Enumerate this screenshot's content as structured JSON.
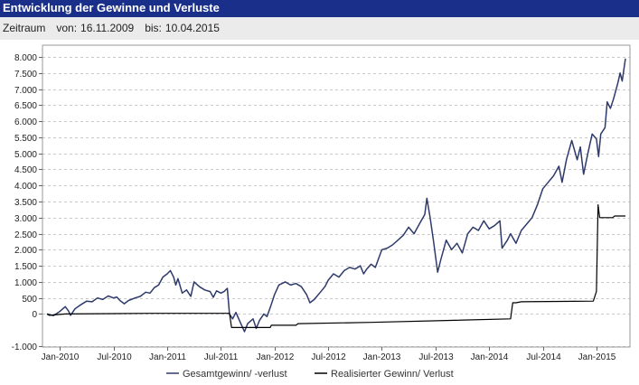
{
  "title": "Entwicklung der Gewinne und Verluste",
  "period": {
    "label": "Zeitraum",
    "from_label": "von:",
    "from": "16.11.2009",
    "to_label": "bis:",
    "to": "10.04.2015"
  },
  "colors": {
    "title_bg": "#1a2f8a",
    "period_bg": "#ebebeb",
    "series_total": "#2e3a6b",
    "series_realized": "#000000",
    "grid": "#c8c8c8"
  },
  "chart_data": {
    "type": "line",
    "title": "",
    "xlabel": "",
    "ylabel": "",
    "xlim": [
      2009.88,
      2015.27
    ],
    "ylim": [
      -1000,
      8300
    ],
    "y_ticks": [
      -1000,
      0,
      500,
      1000,
      1500,
      2000,
      2500,
      3000,
      3500,
      4000,
      4500,
      5000,
      5500,
      6000,
      6500,
      7000,
      7500,
      8000
    ],
    "y_tick_labels": [
      "-1.000",
      "0",
      "500",
      "1.000",
      "1.500",
      "2.000",
      "2.500",
      "3.000",
      "3.500",
      "4.000",
      "4.500",
      "5.000",
      "5.500",
      "6.000",
      "6.500",
      "7.000",
      "7.500",
      "8.000"
    ],
    "x_ticks": [
      {
        "label": "Jan-2010",
        "x": 2010.0
      },
      {
        "label": "Jul-2010",
        "x": 2010.5
      },
      {
        "label": "Jan-2011",
        "x": 2011.0
      },
      {
        "label": "Jul-2011",
        "x": 2011.5
      },
      {
        "label": "Jan-2012",
        "x": 2012.0
      },
      {
        "label": "Jul-2012",
        "x": 2012.5
      },
      {
        "label": "Jan-2013",
        "x": 2013.0
      },
      {
        "label": "Jul-2013",
        "x": 2013.5
      },
      {
        "label": "Jan-2014",
        "x": 2014.0
      },
      {
        "label": "Jul-2014",
        "x": 2014.5
      },
      {
        "label": "Jan-2015",
        "x": 2015.0
      }
    ],
    "grid": true,
    "legend_position": "bottom-center",
    "series": [
      {
        "name": "Gesamtgewinn/ -verlust",
        "color": "#2e3a6b",
        "points": [
          [
            2009.88,
            0
          ],
          [
            2009.94,
            -50
          ],
          [
            2010.0,
            80
          ],
          [
            2010.05,
            230
          ],
          [
            2010.08,
            100
          ],
          [
            2010.1,
            -40
          ],
          [
            2010.14,
            160
          ],
          [
            2010.2,
            300
          ],
          [
            2010.25,
            400
          ],
          [
            2010.3,
            380
          ],
          [
            2010.35,
            500
          ],
          [
            2010.4,
            450
          ],
          [
            2010.45,
            560
          ],
          [
            2010.5,
            500
          ],
          [
            2010.53,
            530
          ],
          [
            2010.56,
            420
          ],
          [
            2010.6,
            320
          ],
          [
            2010.64,
            420
          ],
          [
            2010.7,
            500
          ],
          [
            2010.75,
            550
          ],
          [
            2010.8,
            680
          ],
          [
            2010.84,
            650
          ],
          [
            2010.88,
            820
          ],
          [
            2010.92,
            900
          ],
          [
            2010.96,
            1150
          ],
          [
            2011.0,
            1250
          ],
          [
            2011.03,
            1350
          ],
          [
            2011.06,
            1150
          ],
          [
            2011.08,
            900
          ],
          [
            2011.1,
            1100
          ],
          [
            2011.14,
            650
          ],
          [
            2011.18,
            750
          ],
          [
            2011.22,
            550
          ],
          [
            2011.25,
            1000
          ],
          [
            2011.3,
            850
          ],
          [
            2011.35,
            750
          ],
          [
            2011.4,
            700
          ],
          [
            2011.43,
            520
          ],
          [
            2011.46,
            720
          ],
          [
            2011.5,
            650
          ],
          [
            2011.53,
            700
          ],
          [
            2011.56,
            800
          ],
          [
            2011.58,
            0
          ],
          [
            2011.61,
            -150
          ],
          [
            2011.64,
            50
          ],
          [
            2011.68,
            -250
          ],
          [
            2011.72,
            -550
          ],
          [
            2011.75,
            -300
          ],
          [
            2011.8,
            -150
          ],
          [
            2011.83,
            -450
          ],
          [
            2011.86,
            -200
          ],
          [
            2011.9,
            0
          ],
          [
            2011.93,
            -80
          ],
          [
            2011.96,
            200
          ],
          [
            2012.0,
            600
          ],
          [
            2012.04,
            900
          ],
          [
            2012.1,
            1000
          ],
          [
            2012.15,
            900
          ],
          [
            2012.2,
            950
          ],
          [
            2012.25,
            850
          ],
          [
            2012.3,
            600
          ],
          [
            2012.33,
            350
          ],
          [
            2012.37,
            450
          ],
          [
            2012.42,
            650
          ],
          [
            2012.47,
            850
          ],
          [
            2012.5,
            1050
          ],
          [
            2012.55,
            1250
          ],
          [
            2012.6,
            1150
          ],
          [
            2012.65,
            1350
          ],
          [
            2012.7,
            1450
          ],
          [
            2012.75,
            1400
          ],
          [
            2012.8,
            1500
          ],
          [
            2012.83,
            1250
          ],
          [
            2012.86,
            1400
          ],
          [
            2012.9,
            1550
          ],
          [
            2012.94,
            1450
          ],
          [
            2013.0,
            2000
          ],
          [
            2013.05,
            2050
          ],
          [
            2013.1,
            2150
          ],
          [
            2013.15,
            2300
          ],
          [
            2013.2,
            2450
          ],
          [
            2013.25,
            2700
          ],
          [
            2013.3,
            2500
          ],
          [
            2013.35,
            2800
          ],
          [
            2013.4,
            3100
          ],
          [
            2013.42,
            3600
          ],
          [
            2013.45,
            3000
          ],
          [
            2013.48,
            2300
          ],
          [
            2013.52,
            1300
          ],
          [
            2013.55,
            1700
          ],
          [
            2013.6,
            2300
          ],
          [
            2013.65,
            2000
          ],
          [
            2013.7,
            2200
          ],
          [
            2013.75,
            1900
          ],
          [
            2013.8,
            2500
          ],
          [
            2013.85,
            2700
          ],
          [
            2013.9,
            2600
          ],
          [
            2013.95,
            2900
          ],
          [
            2014.0,
            2650
          ],
          [
            2014.05,
            2750
          ],
          [
            2014.1,
            2900
          ],
          [
            2014.12,
            2050
          ],
          [
            2014.17,
            2300
          ],
          [
            2014.2,
            2500
          ],
          [
            2014.25,
            2200
          ],
          [
            2014.3,
            2600
          ],
          [
            2014.35,
            2800
          ],
          [
            2014.4,
            3000
          ],
          [
            2014.45,
            3400
          ],
          [
            2014.5,
            3900
          ],
          [
            2014.55,
            4100
          ],
          [
            2014.6,
            4300
          ],
          [
            2014.65,
            4600
          ],
          [
            2014.68,
            4100
          ],
          [
            2014.72,
            4800
          ],
          [
            2014.77,
            5400
          ],
          [
            2014.82,
            4800
          ],
          [
            2014.85,
            5200
          ],
          [
            2014.88,
            4350
          ],
          [
            2014.92,
            5000
          ],
          [
            2014.96,
            5600
          ],
          [
            2015.0,
            5450
          ],
          [
            2015.02,
            4900
          ],
          [
            2015.04,
            5600
          ],
          [
            2015.08,
            5800
          ],
          [
            2015.1,
            6600
          ],
          [
            2015.13,
            6400
          ],
          [
            2015.16,
            6700
          ],
          [
            2015.2,
            7200
          ],
          [
            2015.22,
            7500
          ],
          [
            2015.24,
            7250
          ],
          [
            2015.27,
            7950
          ]
        ]
      },
      {
        "name": "Realisierter Gewinn/ Verlust",
        "color": "#000000",
        "points": [
          [
            2009.88,
            0
          ],
          [
            2009.9,
            -40
          ],
          [
            2010.05,
            0
          ],
          [
            2010.85,
            20
          ],
          [
            2011.58,
            20
          ],
          [
            2011.6,
            -420
          ],
          [
            2011.96,
            -420
          ],
          [
            2011.97,
            -350
          ],
          [
            2012.2,
            -350
          ],
          [
            2012.22,
            -300
          ],
          [
            2012.9,
            -260
          ],
          [
            2013.6,
            -200
          ],
          [
            2014.2,
            -150
          ],
          [
            2014.22,
            350
          ],
          [
            2014.25,
            350
          ],
          [
            2014.3,
            380
          ],
          [
            2014.97,
            400
          ],
          [
            2015.0,
            700
          ],
          [
            2015.015,
            3400
          ],
          [
            2015.03,
            3000
          ],
          [
            2015.15,
            3000
          ],
          [
            2015.17,
            3050
          ],
          [
            2015.27,
            3050
          ]
        ]
      }
    ]
  }
}
